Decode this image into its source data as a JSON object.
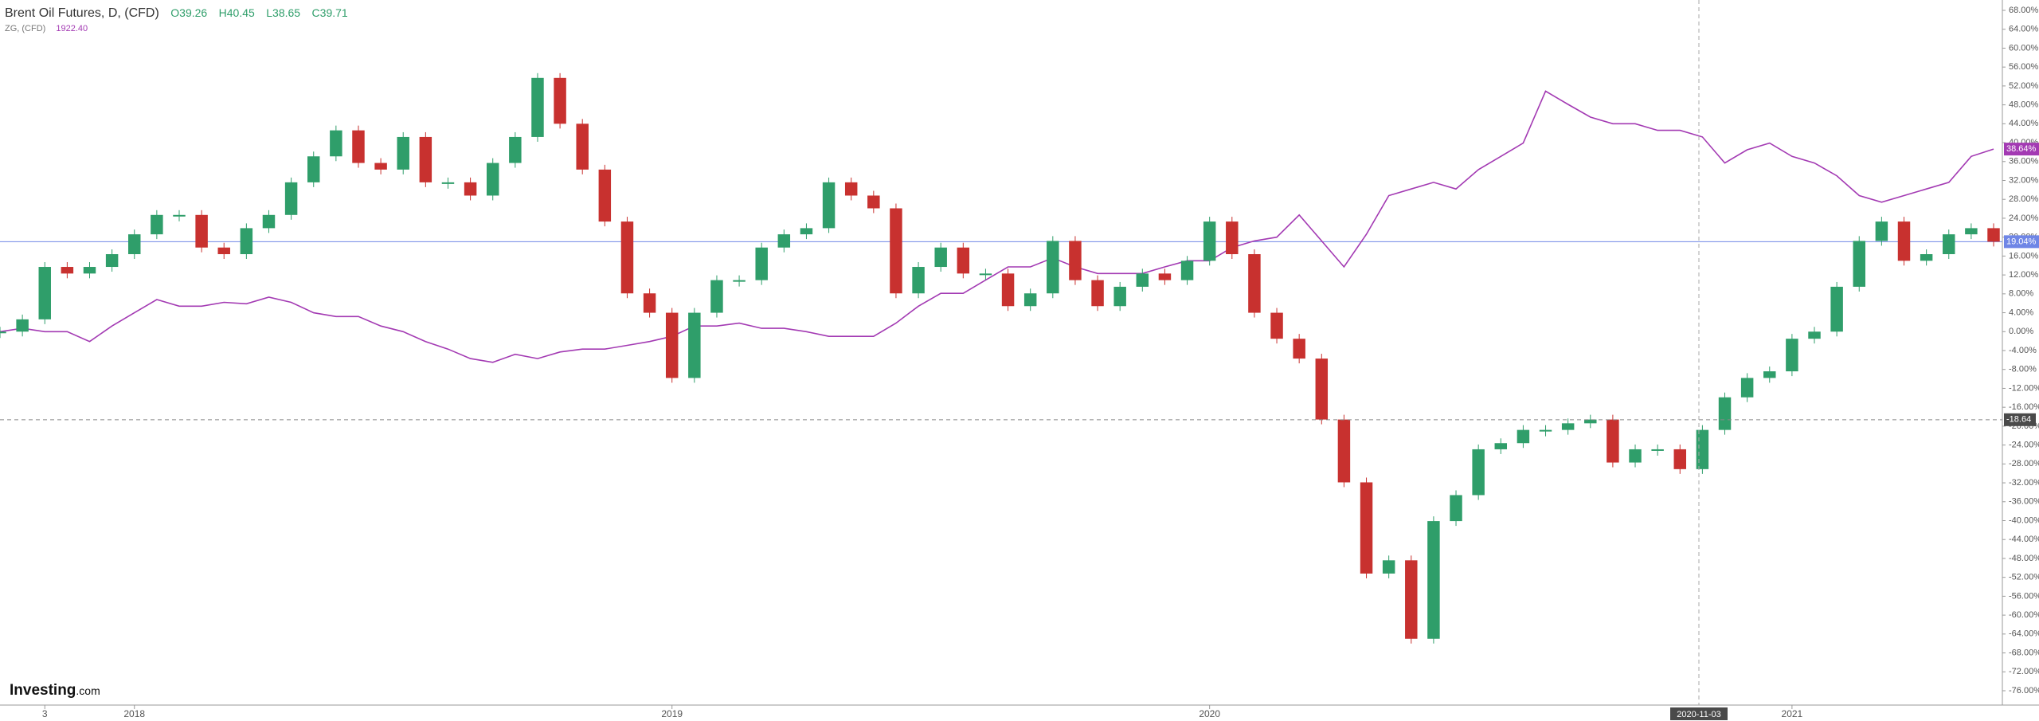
{
  "header": {
    "title": "Brent Oil Futures, D, (CFD)",
    "ohlc": [
      "O39.26",
      "H40.45",
      "L38.65",
      "C39.71"
    ],
    "compare_name": "ZG, (CFD)",
    "compare_value": "1922.40"
  },
  "brand": {
    "name": "Investing",
    "suffix": ".com"
  },
  "chart_data": {
    "type": "candle-compare",
    "categories": [
      null,
      null,
      "3",
      null,
      null,
      null,
      "2018",
      null,
      null,
      null,
      null,
      null,
      null,
      null,
      null,
      null,
      null,
      null,
      null,
      null,
      null,
      null,
      null,
      null,
      null,
      null,
      null,
      null,
      null,
      null,
      "2019",
      null,
      null,
      null,
      null,
      null,
      null,
      null,
      null,
      null,
      null,
      null,
      null,
      null,
      null,
      null,
      null,
      null,
      null,
      null,
      null,
      null,
      null,
      null,
      "2020",
      null,
      null,
      null,
      null,
      null,
      null,
      null,
      null,
      null,
      null,
      null,
      null,
      null,
      null,
      null,
      null,
      null,
      null,
      null,
      null,
      null,
      null,
      null,
      null,
      null,
      "2021",
      null,
      null,
      null,
      null,
      null,
      null,
      null,
      null,
      null
    ],
    "series": [
      {
        "name": "Brent Oil Futures",
        "up_color": "#2f9e6a",
        "down_color": "#c8312f",
        "line_color": "#6f86e6",
        "last_label": "19.04%",
        "values": [
          0,
          2.6,
          13.7,
          12.3,
          13.7,
          16.4,
          20.6,
          24.7,
          24.7,
          17.8,
          16.4,
          21.9,
          24.7,
          31.6,
          37.1,
          42.6,
          35.7,
          34.3,
          41.2,
          31.6,
          31.6,
          28.8,
          35.7,
          41.2,
          53.7,
          44.0,
          34.3,
          23.3,
          8.1,
          4.0,
          -9.8,
          4.0,
          10.9,
          10.9,
          17.8,
          20.6,
          21.9,
          31.6,
          28.8,
          26.1,
          8.1,
          13.7,
          17.8,
          12.3,
          12.3,
          5.4,
          8.1,
          19.2,
          10.9,
          5.4,
          9.5,
          12.3,
          10.9,
          15.0,
          23.3,
          16.4,
          4.0,
          -1.5,
          -5.7,
          -18.6,
          -31.9,
          -51.2,
          -48.4,
          -65,
          -40.1,
          -34.6,
          -24.9,
          -23.6,
          -20.8,
          -20.8,
          -19.4,
          -18.6,
          -27.7,
          -24.9,
          -24.9,
          -29.1,
          -20.8,
          -13.9,
          -9.8,
          -8.4,
          -1.5,
          0,
          9.5,
          19.2,
          23.3,
          15.0,
          16.4,
          20.6,
          21.9,
          19.04
        ]
      },
      {
        "name": "ZG",
        "color": "#a33ab3",
        "last_label": "38.64%",
        "values": [
          0,
          0.7,
          0,
          0,
          -2.1,
          1.2,
          4.0,
          6.8,
          5.4,
          5.4,
          6.2,
          5.9,
          7.3,
          6.2,
          4.0,
          3.2,
          3.2,
          1.2,
          0,
          -2.1,
          -3.7,
          -5.7,
          -6.5,
          -4.8,
          -5.7,
          -4.3,
          -3.7,
          -3.7,
          -2.9,
          -2.1,
          -1.0,
          1.2,
          1.2,
          1.8,
          0.7,
          0.7,
          0,
          -1.0,
          -1.0,
          -1.0,
          1.8,
          5.4,
          8.1,
          8.1,
          10.9,
          13.7,
          13.7,
          15.6,
          13.7,
          12.3,
          12.3,
          12.3,
          13.7,
          15.0,
          15.0,
          17.8,
          19.2,
          20.0,
          24.7,
          19.2,
          13.7,
          20.6,
          28.8,
          30.2,
          31.6,
          30.2,
          34.3,
          37.1,
          39.9,
          50.9,
          48.1,
          45.4,
          44.0,
          44.0,
          42.6,
          42.6,
          41.2,
          35.7,
          38.5,
          39.9,
          37.1,
          35.7,
          33.0,
          28.8,
          27.4,
          28.8,
          30.2,
          31.6,
          37.1,
          38.64
        ]
      }
    ],
    "crosshair": {
      "x_label": "2020-11-03",
      "y": -18.64,
      "y_label": "-18.64"
    },
    "ylim": [
      -78,
      70
    ],
    "yticks": [
      {
        "value": 68,
        "label": "68.00%"
      },
      {
        "value": 64,
        "label": "64.00%"
      },
      {
        "value": 60,
        "label": "60.00%"
      },
      {
        "value": 56,
        "label": "56.00%"
      },
      {
        "value": 52,
        "label": "52.00%"
      },
      {
        "value": 48,
        "label": "48.00%"
      },
      {
        "value": 44,
        "label": "44.00%"
      },
      {
        "value": 40,
        "label": "40.00%"
      },
      {
        "value": 36,
        "label": "36.00%"
      },
      {
        "value": 32,
        "label": "32.00%"
      },
      {
        "value": 28,
        "label": "28.00%"
      },
      {
        "value": 24,
        "label": "24.00%"
      },
      {
        "value": 20,
        "label": "20.00%"
      },
      {
        "value": 16,
        "label": "16.00%"
      },
      {
        "value": 12,
        "label": "12.00%"
      },
      {
        "value": 8,
        "label": "8.00%"
      },
      {
        "value": 4,
        "label": "4.00%"
      },
      {
        "value": 0,
        "label": "0.00%"
      },
      {
        "value": -4,
        "label": "-4.00%"
      },
      {
        "value": -8,
        "label": "-8.00%"
      },
      {
        "value": -12,
        "label": "-12.00%"
      },
      {
        "value": -16,
        "label": "-16.00%"
      },
      {
        "value": -20,
        "label": "-20.00%"
      },
      {
        "value": -24,
        "label": "-24.00%"
      },
      {
        "value": -28,
        "label": "-28.00%"
      },
      {
        "value": -32,
        "label": "-32.00%"
      },
      {
        "value": -36,
        "label": "-36.00%"
      },
      {
        "value": -40,
        "label": "-40.00%"
      },
      {
        "value": -44,
        "label": "-44.00%"
      },
      {
        "value": -48,
        "label": "-48.00%"
      },
      {
        "value": -52,
        "label": "-52.00%"
      },
      {
        "value": -56,
        "label": "-56.00%"
      },
      {
        "value": -60,
        "label": "-60.00%"
      },
      {
        "value": -64,
        "label": "-64.00%"
      },
      {
        "value": -68,
        "label": "-68.00%"
      },
      {
        "value": -72,
        "label": "-72.00%"
      },
      {
        "value": -76,
        "label": "-76.00%"
      }
    ]
  }
}
